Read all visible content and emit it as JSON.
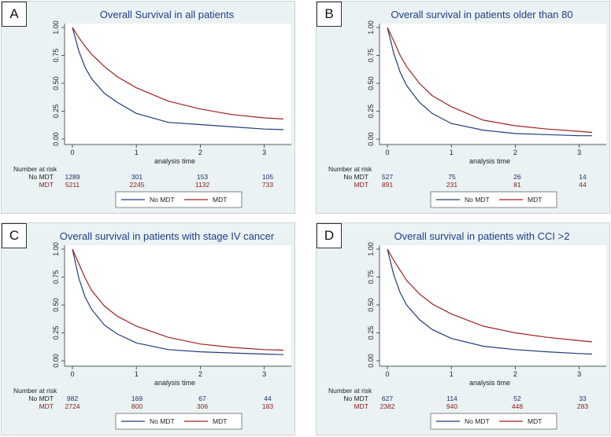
{
  "colors": {
    "no_mdt": "#1f3c7a",
    "mdt": "#a02020",
    "title": "#1d3f8a",
    "panel_bg": "#eaf2f3"
  },
  "risk_header": "Number at risk",
  "legend": {
    "no_mdt": "No MDT",
    "mdt": "MDT"
  },
  "chart_data": [
    {
      "type": "line",
      "panel": "A",
      "title": "Overall Survival in all patients",
      "xlabel": "analysis time",
      "ylabel": "",
      "xlim": [
        0,
        3.3
      ],
      "ylim": [
        0,
        1
      ],
      "xticks": [
        "0",
        "1",
        "2",
        "3"
      ],
      "yticks": [
        "0.00",
        "0.25",
        "0.50",
        "0.75",
        "1.00"
      ],
      "series": [
        {
          "name": "No MDT",
          "x": [
            0,
            0.1,
            0.2,
            0.3,
            0.5,
            0.7,
            1.0,
            1.5,
            2.0,
            2.5,
            3.0,
            3.3
          ],
          "y": [
            1.0,
            0.79,
            0.64,
            0.54,
            0.41,
            0.33,
            0.23,
            0.15,
            0.13,
            0.11,
            0.09,
            0.085
          ]
        },
        {
          "name": "MDT",
          "x": [
            0,
            0.1,
            0.2,
            0.3,
            0.5,
            0.7,
            1.0,
            1.5,
            2.0,
            2.5,
            3.0,
            3.3
          ],
          "y": [
            1.0,
            0.91,
            0.83,
            0.76,
            0.65,
            0.56,
            0.46,
            0.34,
            0.27,
            0.22,
            0.19,
            0.18
          ]
        }
      ],
      "risk_table": {
        "no_mdt_label": "No MDT",
        "mdt_label": "MDT",
        "no_mdt": [
          "1289",
          "301",
          "153",
          "105"
        ],
        "mdt": [
          "5211",
          "2245",
          "1132",
          "733"
        ]
      }
    },
    {
      "type": "line",
      "panel": "B",
      "title": "Overall survival in patients older than 80",
      "xlabel": "analysis time",
      "ylabel": "",
      "xlim": [
        0,
        3.3
      ],
      "ylim": [
        0,
        1
      ],
      "xticks": [
        "0",
        "1",
        "2",
        "3"
      ],
      "yticks": [
        "0.00",
        "0.25",
        "0.50",
        "0.75",
        "1.00"
      ],
      "series": [
        {
          "name": "No MDT",
          "x": [
            0,
            0.1,
            0.2,
            0.3,
            0.5,
            0.7,
            1.0,
            1.5,
            2.0,
            2.5,
            3.0,
            3.2
          ],
          "y": [
            1.0,
            0.77,
            0.6,
            0.48,
            0.33,
            0.23,
            0.14,
            0.08,
            0.05,
            0.04,
            0.03,
            0.03
          ]
        },
        {
          "name": "MDT",
          "x": [
            0,
            0.1,
            0.2,
            0.3,
            0.5,
            0.7,
            1.0,
            1.5,
            2.0,
            2.5,
            3.0,
            3.2
          ],
          "y": [
            1.0,
            0.88,
            0.75,
            0.65,
            0.5,
            0.39,
            0.29,
            0.17,
            0.12,
            0.09,
            0.07,
            0.06
          ]
        }
      ],
      "risk_table": {
        "no_mdt_label": "No MDT",
        "mdt_label": "MDT",
        "no_mdt": [
          "527",
          "75",
          "26",
          "14"
        ],
        "mdt": [
          "891",
          "231",
          "81",
          "44"
        ]
      }
    },
    {
      "type": "line",
      "panel": "C",
      "title": "Overall survival in patients with stage IV cancer",
      "xlabel": "analysis time",
      "ylabel": "",
      "xlim": [
        0,
        3.3
      ],
      "ylim": [
        0,
        1
      ],
      "xticks": [
        "0",
        "1",
        "2",
        "3"
      ],
      "yticks": [
        "0.00",
        "0.25",
        "0.50",
        "0.75",
        "1.00"
      ],
      "series": [
        {
          "name": "No MDT",
          "x": [
            0,
            0.1,
            0.2,
            0.3,
            0.5,
            0.7,
            1.0,
            1.5,
            2.0,
            2.5,
            3.0,
            3.3
          ],
          "y": [
            1.0,
            0.74,
            0.57,
            0.46,
            0.32,
            0.24,
            0.16,
            0.1,
            0.08,
            0.07,
            0.06,
            0.055
          ]
        },
        {
          "name": "MDT",
          "x": [
            0,
            0.1,
            0.2,
            0.3,
            0.5,
            0.7,
            1.0,
            1.5,
            2.0,
            2.5,
            3.0,
            3.3
          ],
          "y": [
            1.0,
            0.87,
            0.74,
            0.63,
            0.49,
            0.4,
            0.31,
            0.21,
            0.15,
            0.12,
            0.1,
            0.095
          ]
        }
      ],
      "risk_table": {
        "no_mdt_label": "No MDT",
        "mdt_label": "MDT",
        "no_mdt": [
          "982",
          "169",
          "67",
          "44"
        ],
        "mdt": [
          "2724",
          "800",
          "306",
          "183"
        ]
      }
    },
    {
      "type": "line",
      "panel": "D",
      "title": "Overall survival in patients with CCI >2",
      "xlabel": "analysis time",
      "ylabel": "",
      "xlim": [
        0,
        3.3
      ],
      "ylim": [
        0,
        1
      ],
      "xticks": [
        "0",
        "1",
        "2",
        "3"
      ],
      "yticks": [
        "0.00",
        "0.25",
        "0.50",
        "0.75",
        "1.00"
      ],
      "series": [
        {
          "name": "No MDT",
          "x": [
            0,
            0.1,
            0.2,
            0.3,
            0.5,
            0.7,
            1.0,
            1.5,
            2.0,
            2.5,
            3.0,
            3.2
          ],
          "y": [
            1.0,
            0.77,
            0.61,
            0.5,
            0.37,
            0.28,
            0.2,
            0.13,
            0.1,
            0.08,
            0.065,
            0.06
          ]
        },
        {
          "name": "MDT",
          "x": [
            0,
            0.1,
            0.2,
            0.3,
            0.5,
            0.7,
            1.0,
            1.5,
            2.0,
            2.5,
            3.0,
            3.2
          ],
          "y": [
            1.0,
            0.9,
            0.81,
            0.72,
            0.6,
            0.51,
            0.42,
            0.31,
            0.25,
            0.21,
            0.18,
            0.17
          ]
        }
      ],
      "risk_table": {
        "no_mdt_label": "No MDT",
        "mdt_label": "MDT",
        "no_mdt": [
          "627",
          "114",
          "52",
          "33"
        ],
        "mdt": [
          "2382",
          "940",
          "448",
          "283"
        ]
      }
    }
  ]
}
